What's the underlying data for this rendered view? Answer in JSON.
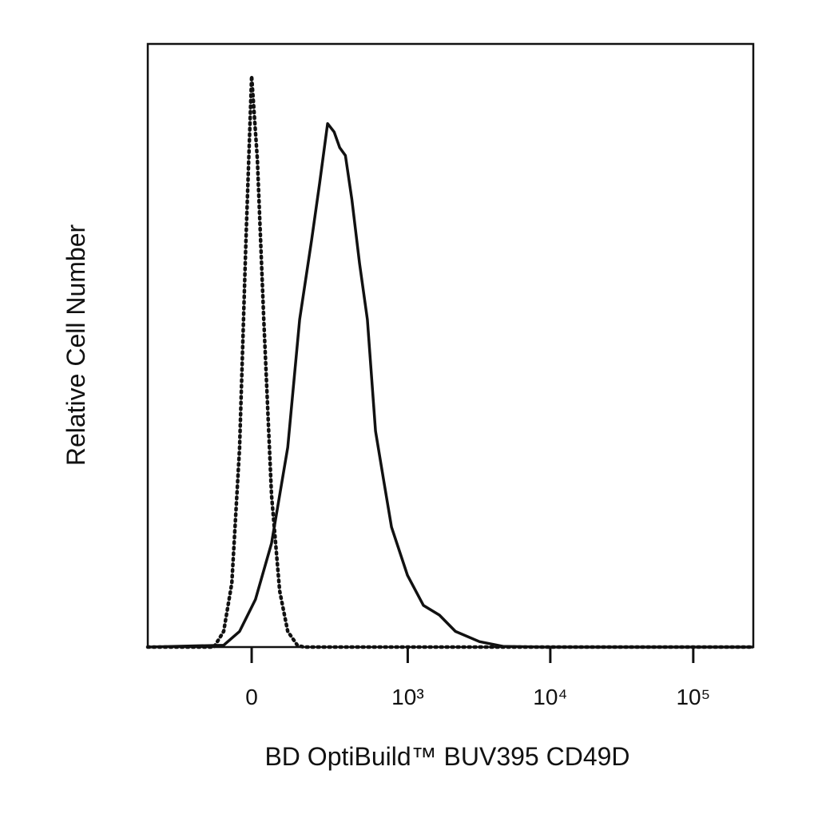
{
  "chart_data": {
    "type": "line",
    "xlabel": "BD OptiBuild™ BUV395 CD49D",
    "ylabel": "Relative Cell Number",
    "xscale": "asinh",
    "xlim": [
      -419,
      263000
    ],
    "ylim": [
      0,
      100
    ],
    "xticks": [
      0,
      {
        "value": 1000,
        "label": "10³"
      },
      {
        "value": 10000,
        "label": "10⁴"
      },
      {
        "value": 100000,
        "label": "10⁵"
      }
    ],
    "series": [
      {
        "color": "#111111",
        "line_style": "dotted",
        "x": [
          -419,
          -105,
          -76,
          -53,
          -32,
          -15,
          0,
          15,
          32,
          53,
          76,
          100,
          131,
          153,
          263000
        ],
        "values": [
          0,
          0,
          2.6,
          10.6,
          33,
          67.5,
          94.7,
          80.8,
          54.3,
          25.2,
          9.3,
          2.6,
          0.3,
          0,
          0
        ]
      },
      {
        "color": "#111111",
        "line_style": "solid",
        "x": [
          -419,
          -76,
          -32,
          10,
          53,
          100,
          139,
          183,
          216,
          253,
          286,
          317,
          351,
          393,
          449,
          513,
          588,
          672,
          766,
          996,
          1291,
          1674,
          2166,
          3190,
          4694,
          8949,
          263000
        ],
        "values": [
          0,
          0.3,
          2.6,
          7.9,
          17.2,
          33.1,
          54.3,
          67.5,
          76.8,
          86.8,
          85.4,
          82.8,
          81.5,
          74.2,
          63.6,
          54.3,
          35.8,
          27.8,
          19.9,
          11.9,
          6.9,
          5.3,
          2.6,
          0.9,
          0.1,
          0,
          0
        ]
      }
    ]
  }
}
